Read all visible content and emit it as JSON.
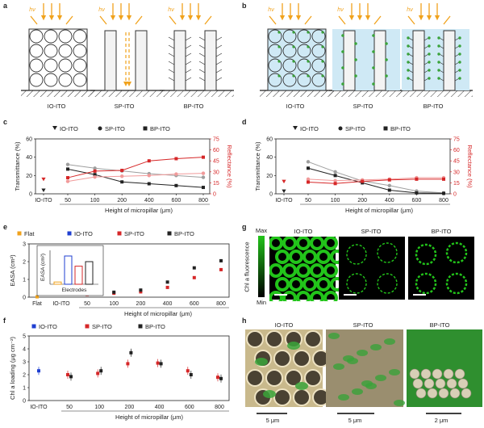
{
  "panels": {
    "a": {
      "letter": "a",
      "hv": "hν",
      "labels": [
        "IO-ITO",
        "SP-ITO",
        "BP-ITO"
      ]
    },
    "b": {
      "letter": "b",
      "hv": "hν",
      "labels": [
        "IO-ITO",
        "SP-ITO",
        "BP-ITO"
      ]
    },
    "c": {
      "letter": "c"
    },
    "d": {
      "letter": "d"
    },
    "e": {
      "letter": "e"
    },
    "f": {
      "letter": "f"
    },
    "g": {
      "letter": "g",
      "scale_top": "Max",
      "scale_bottom": "Min",
      "scale_label": "Chl a fluorescence",
      "labels": [
        "IO-ITO",
        "SP-ITO",
        "BP-ITO"
      ],
      "colors": {
        "green": "#22c41a",
        "dark": "#000000"
      }
    },
    "h": {
      "letter": "h",
      "labels": [
        "IO-ITO",
        "SP-ITO",
        "BP-ITO"
      ],
      "scalebars": [
        "5 μm",
        "5 μm",
        "2 μm"
      ]
    }
  },
  "colors": {
    "orange": "#f0a21c",
    "red": "#d62728",
    "pink": "#f19a9a",
    "gray": "#9e9e9e",
    "dark": "#222222",
    "blue": "#1f3fd1",
    "lightblue": "#cfe9f5",
    "green": "#3aa33a"
  },
  "chart_data": [
    {
      "panel": "c",
      "type": "line",
      "legend": [
        "IO-ITO",
        "SP-ITO",
        "BP-ITO"
      ],
      "ylabel_left": "Transmittance (%)",
      "ylabel_right": "Reflectance (%)",
      "xlabel": "Height of micropillar (μm)",
      "categories": [
        "IO-ITO",
        "50",
        "100",
        "200",
        "400",
        "600",
        "800"
      ],
      "ylim_left": [
        0,
        60
      ],
      "ylim_right": [
        0,
        75
      ],
      "yticks_left": [
        "0",
        "20",
        "40",
        "60"
      ],
      "yticks_right": [
        "0",
        "15",
        "30",
        "45",
        "60",
        "75"
      ],
      "series": [
        {
          "name": "IO-ITO",
          "axis": "left",
          "values": [
            4,
            null,
            null,
            null,
            null,
            null,
            null
          ]
        },
        {
          "name": "SP-ITO",
          "axis": "left",
          "values": [
            null,
            32,
            28,
            25,
            22,
            20,
            18
          ]
        },
        {
          "name": "BP-ITO",
          "axis": "left",
          "values": [
            null,
            27,
            21,
            13,
            11,
            9,
            7
          ]
        },
        {
          "name": "IO-ITO",
          "axis": "right",
          "values": [
            20,
            null,
            null,
            null,
            null,
            null,
            null
          ]
        },
        {
          "name": "SP-ITO",
          "axis": "right",
          "values": [
            null,
            17,
            23,
            24,
            25,
            27,
            28
          ]
        },
        {
          "name": "BP-ITO",
          "axis": "right",
          "values": [
            null,
            22,
            31,
            32,
            45,
            48,
            50
          ]
        }
      ]
    },
    {
      "panel": "d",
      "type": "line",
      "legend": [
        "IO-ITO",
        "SP-ITO",
        "BP-ITO"
      ],
      "ylabel_left": "Transmittance (%)",
      "ylabel_right": "Reflectance (%)",
      "xlabel": "Height of micropillar (μm)",
      "categories": [
        "IO-ITO",
        "50",
        "100",
        "200",
        "400",
        "600",
        "800"
      ],
      "ylim_left": [
        0,
        60
      ],
      "ylim_right": [
        0,
        75
      ],
      "yticks_left": [
        "0",
        "20",
        "40",
        "60"
      ],
      "yticks_right": [
        "0",
        "15",
        "30",
        "45",
        "60",
        "75"
      ],
      "series": [
        {
          "name": "IO-ITO",
          "axis": "left",
          "values": [
            3,
            null,
            null,
            null,
            null,
            null,
            null
          ]
        },
        {
          "name": "SP-ITO",
          "axis": "left",
          "values": [
            null,
            35,
            24,
            14,
            9,
            3,
            1
          ]
        },
        {
          "name": "BP-ITO",
          "axis": "left",
          "values": [
            null,
            28,
            20,
            12,
            4,
            1,
            0.5
          ]
        },
        {
          "name": "IO-ITO",
          "axis": "right",
          "values": [
            17,
            null,
            null,
            null,
            null,
            null,
            null
          ]
        },
        {
          "name": "SP-ITO",
          "axis": "right",
          "values": [
            null,
            20,
            18,
            19,
            20,
            22,
            22
          ]
        },
        {
          "name": "BP-ITO",
          "axis": "right",
          "values": [
            null,
            16,
            14,
            17,
            19,
            20,
            20
          ]
        }
      ]
    },
    {
      "panel": "e",
      "type": "scatter",
      "legend": [
        "Flat",
        "IO-ITO",
        "SP-ITO",
        "BP-ITO"
      ],
      "ylabel": "EASA (cm²)",
      "xlabel": "Height of micropillar (μm)",
      "categories": [
        "Flat",
        "IO-ITO",
        "50",
        "100",
        "200",
        "400",
        "600",
        "800"
      ],
      "ylim": [
        0,
        3
      ],
      "yticks": [
        "0",
        "1",
        "2",
        "3"
      ],
      "series": [
        {
          "name": "Flat",
          "values": [
            0.02,
            null,
            null,
            null,
            null,
            null,
            null,
            null
          ]
        },
        {
          "name": "IO-ITO",
          "values": [
            null,
            0.25,
            null,
            null,
            null,
            null,
            null,
            null
          ]
        },
        {
          "name": "SP-ITO",
          "values": [
            null,
            null,
            0.15,
            0.22,
            0.3,
            0.55,
            1.1,
            1.55
          ]
        },
        {
          "name": "BP-ITO",
          "values": [
            null,
            null,
            0.2,
            0.28,
            0.4,
            0.85,
            1.65,
            2.05
          ]
        }
      ],
      "inset": {
        "ylabel": "EASA (cm²)",
        "xlabel": "Electrodes",
        "values": [
          0.02,
          0.25,
          0.16,
          0.2
        ]
      }
    },
    {
      "panel": "f",
      "type": "scatter",
      "legend": [
        "IO-ITO",
        "SP-ITO",
        "BP-ITO"
      ],
      "ylabel": "Chl a loading (μg cm⁻²)",
      "xlabel": "Height of micropillar (μm)",
      "categories": [
        "IO-ITO",
        "50",
        "100",
        "200",
        "400",
        "600",
        "800"
      ],
      "ylim": [
        0,
        5
      ],
      "yticks": [
        "0",
        "1",
        "2",
        "3",
        "4",
        "5"
      ],
      "series": [
        {
          "name": "IO-ITO",
          "values": [
            2.3,
            null,
            null,
            null,
            null,
            null,
            null
          ]
        },
        {
          "name": "SP-ITO",
          "values": [
            null,
            2.0,
            2.1,
            2.85,
            2.9,
            2.3,
            1.8
          ]
        },
        {
          "name": "BP-ITO",
          "values": [
            null,
            1.85,
            2.3,
            3.7,
            2.85,
            2.0,
            1.7
          ]
        }
      ]
    }
  ]
}
